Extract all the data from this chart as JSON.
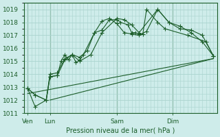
{
  "title": "Pression niveau de la mer( hPa )",
  "bg_color": "#ceecea",
  "grid_color": "#aad4ce",
  "line_color": "#1a5c28",
  "ylim": [
    1011,
    1019.5
  ],
  "yticks": [
    1011,
    1012,
    1013,
    1014,
    1015,
    1016,
    1017,
    1018,
    1019
  ],
  "day_labels": [
    "Ven",
    "Lun",
    "Sam",
    "Dim"
  ],
  "day_positions": [
    0.5,
    3.5,
    12.5,
    20.0
  ],
  "vline_positions": [
    0.5,
    3.5,
    12.5,
    20.0
  ],
  "xlim": [
    0,
    26
  ],
  "series1_x": [
    0.5,
    1.5,
    3.0,
    3.5,
    4.5,
    5.0,
    5.5,
    6.0,
    6.5,
    7.0,
    7.5,
    8.0,
    9.5,
    10.5,
    11.5,
    12.5,
    13.0,
    14.0,
    14.5,
    15.0,
    15.5,
    16.0,
    16.5,
    18.0,
    19.0,
    22.0,
    24.5,
    25.5
  ],
  "series1_y": [
    1012.9,
    1012.4,
    1012.0,
    1013.8,
    1013.9,
    1015.0,
    1015.5,
    1015.1,
    1015.5,
    1014.9,
    1015.1,
    1015.5,
    1017.2,
    1017.4,
    1018.2,
    1018.2,
    1018.0,
    1017.8,
    1017.2,
    1017.2,
    1017.1,
    1017.1,
    1019.0,
    1018.0,
    1017.5,
    1017.0,
    1016.5,
    1015.4
  ],
  "series2_x": [
    0.5,
    1.5,
    3.0,
    3.5,
    4.5,
    5.5,
    6.5,
    7.5,
    8.5,
    9.5,
    10.5,
    11.5,
    12.5,
    13.5,
    14.5,
    15.5,
    16.5,
    18.0,
    19.5,
    21.0,
    22.5,
    24.0,
    25.5
  ],
  "series2_y": [
    1012.9,
    1012.4,
    1012.0,
    1014.0,
    1014.1,
    1015.2,
    1015.5,
    1015.3,
    1015.8,
    1017.2,
    1018.1,
    1018.3,
    1017.9,
    1017.2,
    1017.1,
    1017.0,
    1017.3,
    1019.0,
    1018.0,
    1017.7,
    1017.2,
    1016.5,
    1015.4
  ],
  "series3_x": [
    0.5,
    1.5,
    3.0,
    3.5,
    4.5,
    5.5,
    6.5,
    7.5,
    9.0,
    10.5,
    12.5,
    13.5,
    14.5,
    15.5,
    18.0,
    19.5,
    21.0,
    22.5,
    24.0,
    25.5
  ],
  "series3_y": [
    1012.9,
    1011.5,
    1012.0,
    1013.8,
    1013.9,
    1015.1,
    1015.5,
    1015.0,
    1015.5,
    1017.2,
    1018.3,
    1018.2,
    1017.8,
    1017.2,
    1019.0,
    1018.0,
    1017.5,
    1017.4,
    1017.0,
    1015.4
  ],
  "trend1_x": [
    0.5,
    25.5
  ],
  "trend1_y": [
    1012.5,
    1015.2
  ],
  "trend2_x": [
    3.5,
    25.5
  ],
  "trend2_y": [
    1012.0,
    1015.2
  ]
}
